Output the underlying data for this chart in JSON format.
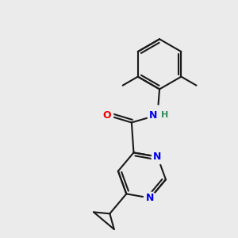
{
  "background_color": "#ebebeb",
  "bond_color": "#1a1a1a",
  "N_color": "#0000ee",
  "O_color": "#ee0000",
  "H_color": "#2e8b57",
  "line_width": 1.5,
  "figsize": [
    3.0,
    3.0
  ],
  "dpi": 100,
  "xlim": [
    -2.5,
    2.5
  ],
  "ylim": [
    -2.8,
    2.8
  ]
}
